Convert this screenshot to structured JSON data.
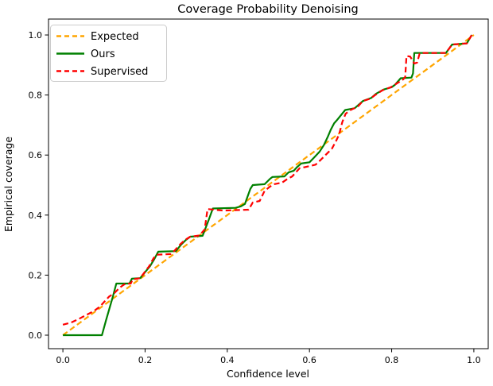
{
  "chart_data": {
    "type": "line",
    "title": "Coverage Probability Denoising",
    "xlabel": "Confidence level",
    "ylabel": "Empirical coverage",
    "xlim": [
      -0.035,
      1.035
    ],
    "ylim": [
      -0.045,
      1.053
    ],
    "grid": false,
    "legend_position": "upper left",
    "xticks": {
      "values": [
        0.0,
        0.2,
        0.4,
        0.6,
        0.8,
        1.0
      ],
      "labels": [
        "0.0",
        "0.2",
        "0.4",
        "0.6",
        "0.8",
        "1.0"
      ]
    },
    "yticks": {
      "values": [
        0.0,
        0.2,
        0.4,
        0.6,
        0.8,
        1.0
      ],
      "labels": [
        "0.0",
        "0.2",
        "0.4",
        "0.6",
        "0.8",
        "1.0"
      ]
    },
    "series": [
      {
        "name": "Expected",
        "color": "#FFA500",
        "style": "dashed",
        "points": [
          [
            0.0,
            0.0
          ],
          [
            1.0,
            1.0
          ]
        ]
      },
      {
        "name": "Ours",
        "color": "#008000",
        "style": "solid",
        "points": [
          [
            0.0,
            0.0
          ],
          [
            0.095,
            0.0
          ],
          [
            0.105,
            0.05
          ],
          [
            0.122,
            0.13
          ],
          [
            0.13,
            0.172
          ],
          [
            0.162,
            0.172
          ],
          [
            0.168,
            0.188
          ],
          [
            0.188,
            0.19
          ],
          [
            0.2,
            0.21
          ],
          [
            0.212,
            0.23
          ],
          [
            0.222,
            0.252
          ],
          [
            0.232,
            0.278
          ],
          [
            0.275,
            0.28
          ],
          [
            0.288,
            0.302
          ],
          [
            0.3,
            0.318
          ],
          [
            0.31,
            0.328
          ],
          [
            0.34,
            0.331
          ],
          [
            0.355,
            0.385
          ],
          [
            0.365,
            0.422
          ],
          [
            0.42,
            0.424
          ],
          [
            0.433,
            0.429
          ],
          [
            0.443,
            0.437
          ],
          [
            0.456,
            0.487
          ],
          [
            0.462,
            0.5
          ],
          [
            0.491,
            0.503
          ],
          [
            0.504,
            0.521
          ],
          [
            0.51,
            0.527
          ],
          [
            0.539,
            0.529
          ],
          [
            0.549,
            0.542
          ],
          [
            0.562,
            0.548
          ],
          [
            0.57,
            0.56
          ],
          [
            0.58,
            0.572
          ],
          [
            0.6,
            0.576
          ],
          [
            0.61,
            0.59
          ],
          [
            0.625,
            0.612
          ],
          [
            0.635,
            0.633
          ],
          [
            0.645,
            0.662
          ],
          [
            0.652,
            0.685
          ],
          [
            0.66,
            0.706
          ],
          [
            0.666,
            0.715
          ],
          [
            0.687,
            0.75
          ],
          [
            0.71,
            0.756
          ],
          [
            0.73,
            0.78
          ],
          [
            0.75,
            0.79
          ],
          [
            0.762,
            0.804
          ],
          [
            0.78,
            0.818
          ],
          [
            0.8,
            0.826
          ],
          [
            0.808,
            0.834
          ],
          [
            0.822,
            0.856
          ],
          [
            0.848,
            0.858
          ],
          [
            0.852,
            0.872
          ],
          [
            0.855,
            0.94
          ],
          [
            0.932,
            0.94
          ],
          [
            0.947,
            0.968
          ],
          [
            0.983,
            0.972
          ],
          [
            0.995,
            1.0
          ]
        ]
      },
      {
        "name": "Supervised",
        "color": "#FF0000",
        "style": "dashed",
        "points": [
          [
            0.0,
            0.035
          ],
          [
            0.02,
            0.042
          ],
          [
            0.04,
            0.055
          ],
          [
            0.058,
            0.068
          ],
          [
            0.075,
            0.08
          ],
          [
            0.09,
            0.095
          ],
          [
            0.1,
            0.11
          ],
          [
            0.112,
            0.128
          ],
          [
            0.125,
            0.14
          ],
          [
            0.138,
            0.158
          ],
          [
            0.148,
            0.168
          ],
          [
            0.155,
            0.172
          ],
          [
            0.165,
            0.172
          ],
          [
            0.17,
            0.186
          ],
          [
            0.188,
            0.19
          ],
          [
            0.2,
            0.212
          ],
          [
            0.21,
            0.23
          ],
          [
            0.22,
            0.255
          ],
          [
            0.228,
            0.268
          ],
          [
            0.262,
            0.27
          ],
          [
            0.272,
            0.282
          ],
          [
            0.285,
            0.302
          ],
          [
            0.298,
            0.318
          ],
          [
            0.31,
            0.328
          ],
          [
            0.332,
            0.332
          ],
          [
            0.345,
            0.352
          ],
          [
            0.352,
            0.42
          ],
          [
            0.39,
            0.415
          ],
          [
            0.452,
            0.418
          ],
          [
            0.462,
            0.442
          ],
          [
            0.479,
            0.447
          ],
          [
            0.491,
            0.481
          ],
          [
            0.504,
            0.495
          ],
          [
            0.514,
            0.503
          ],
          [
            0.533,
            0.508
          ],
          [
            0.547,
            0.521
          ],
          [
            0.558,
            0.529
          ],
          [
            0.576,
            0.556
          ],
          [
            0.59,
            0.56
          ],
          [
            0.615,
            0.568
          ],
          [
            0.628,
            0.585
          ],
          [
            0.645,
            0.608
          ],
          [
            0.655,
            0.622
          ],
          [
            0.665,
            0.648
          ],
          [
            0.672,
            0.668
          ],
          [
            0.68,
            0.71
          ],
          [
            0.688,
            0.738
          ],
          [
            0.7,
            0.75
          ],
          [
            0.718,
            0.762
          ],
          [
            0.73,
            0.78
          ],
          [
            0.748,
            0.788
          ],
          [
            0.76,
            0.8
          ],
          [
            0.778,
            0.816
          ],
          [
            0.798,
            0.826
          ],
          [
            0.812,
            0.838
          ],
          [
            0.828,
            0.852
          ],
          [
            0.833,
            0.86
          ],
          [
            0.836,
            0.93
          ],
          [
            0.845,
            0.928
          ],
          [
            0.855,
            0.905
          ],
          [
            0.862,
            0.908
          ],
          [
            0.868,
            0.938
          ],
          [
            0.875,
            0.94
          ],
          [
            0.932,
            0.94
          ],
          [
            0.947,
            0.968
          ],
          [
            0.983,
            0.972
          ],
          [
            0.995,
            1.0
          ]
        ]
      }
    ]
  }
}
